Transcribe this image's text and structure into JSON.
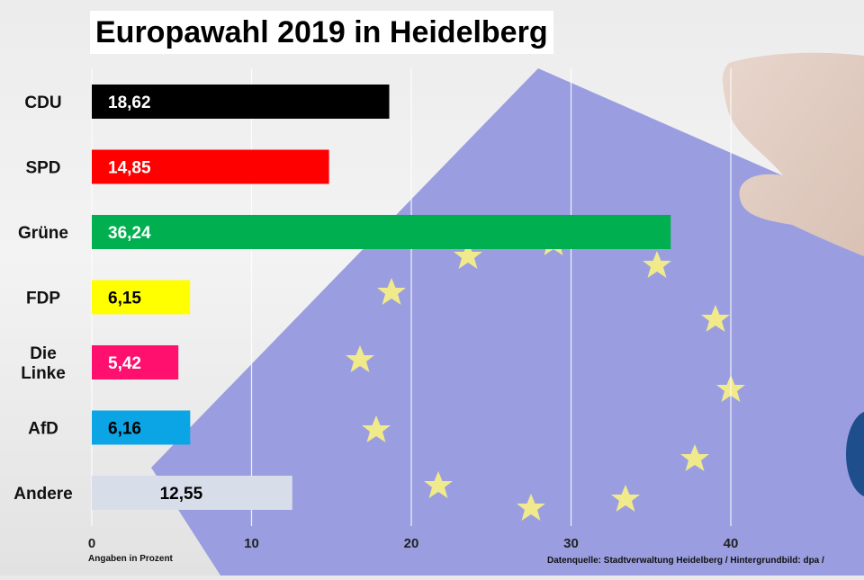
{
  "title": "Europawahl 2019 in Heidelberg",
  "note_left": "Angaben in Prozent",
  "note_right": "Datenquelle: Stadtverwaltung Heidelberg / Hintergrundbild: dpa /",
  "chart_data": {
    "type": "bar",
    "orientation": "horizontal",
    "title": "Europawahl 2019 in Heidelberg",
    "xlabel": "Angaben in Prozent",
    "ylabel": "",
    "categories": [
      "CDU",
      "SPD",
      "Grüne",
      "FDP",
      "Die Linke",
      "AfD",
      "Andere"
    ],
    "category_lines": [
      [
        "CDU"
      ],
      [
        "SPD"
      ],
      [
        "Grüne"
      ],
      [
        "FDP"
      ],
      [
        "Die",
        "Linke"
      ],
      [
        "AfD"
      ],
      [
        "Andere"
      ]
    ],
    "values": [
      18.62,
      14.85,
      36.24,
      6.15,
      5.42,
      6.16,
      12.55
    ],
    "value_labels": [
      "18,62",
      "14,85",
      "36,24",
      "6,15",
      "5,42",
      "6,16",
      "12,55"
    ],
    "colors": [
      "#000000",
      "#ff0000",
      "#00b050",
      "#ffff00",
      "#ff0f6e",
      "#0ba5e6",
      "#d7dee9"
    ],
    "label_colors": [
      "#ffffff",
      "#ffffff",
      "#ffffff",
      "#000000",
      "#ffffff",
      "#000000",
      "#000000"
    ],
    "xticks": [
      0,
      10,
      20,
      30,
      40
    ],
    "xlim": [
      0,
      48
    ],
    "grid": true,
    "background_image": "eu-flag-ballot-in-hand"
  }
}
